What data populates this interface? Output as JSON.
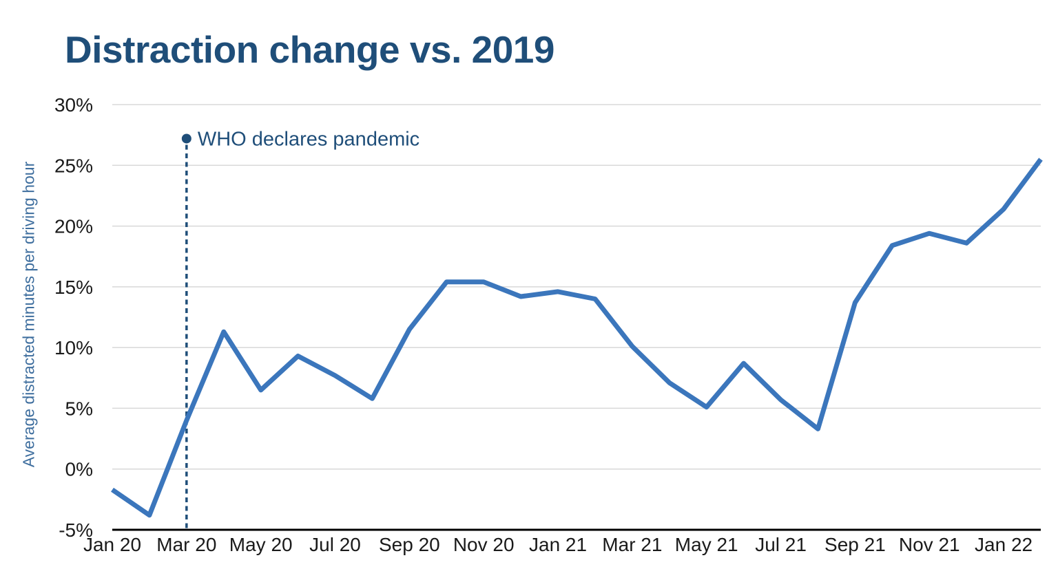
{
  "title": "Distraction change vs. 2019",
  "chart_data": {
    "type": "line",
    "title": "Distraction change vs. 2019",
    "xlabel": "",
    "ylabel": "Average distracted minutes per driving hour",
    "x": [
      "Jan 20",
      "Feb 20",
      "Mar 20",
      "Apr 20",
      "May 20",
      "Jun 20",
      "Jul 20",
      "Aug 20",
      "Sep 20",
      "Oct 20",
      "Nov 20",
      "Dec 20",
      "Jan 21",
      "Feb 21",
      "Mar 21",
      "Apr 21",
      "May 21",
      "Jun 21",
      "Jul 21",
      "Aug 21",
      "Sep 21",
      "Oct 21",
      "Nov 21",
      "Dec 21",
      "Jan 22",
      "Feb 22"
    ],
    "values": [
      -1.7,
      -3.8,
      4.0,
      11.3,
      6.5,
      9.3,
      7.7,
      5.8,
      11.5,
      15.4,
      15.4,
      14.2,
      14.6,
      14.0,
      10.1,
      7.1,
      5.1,
      8.7,
      5.7,
      3.3,
      13.7,
      18.4,
      19.4,
      18.6,
      21.4,
      25.5
    ],
    "x_tick_labels": [
      "Jan 20",
      "Mar 20",
      "May 20",
      "Jul 20",
      "Sep 20",
      "Nov 20",
      "Jan 21",
      "Mar 21",
      "May 21",
      "Jul 21",
      "Sep 21",
      "Nov 21",
      "Jan 22"
    ],
    "x_tick_every": 2,
    "y_ticks": [
      30,
      25,
      20,
      15,
      10,
      5,
      0,
      -5
    ],
    "y_tick_suffix": "%",
    "ylim": [
      -5,
      30
    ],
    "grid": true,
    "legend": "none",
    "annotation": {
      "text": "WHO declares pandemic",
      "x_index": 2,
      "marker_value": 27.2
    },
    "colors": {
      "line": "#3B76BC",
      "title": "#1F4E79",
      "annotation": "#1F4E79",
      "axis_title": "#3E6E9E",
      "tick_label": "#1A1A1A",
      "gridline": "#D8D8D8",
      "axis_line": "#000000"
    }
  }
}
